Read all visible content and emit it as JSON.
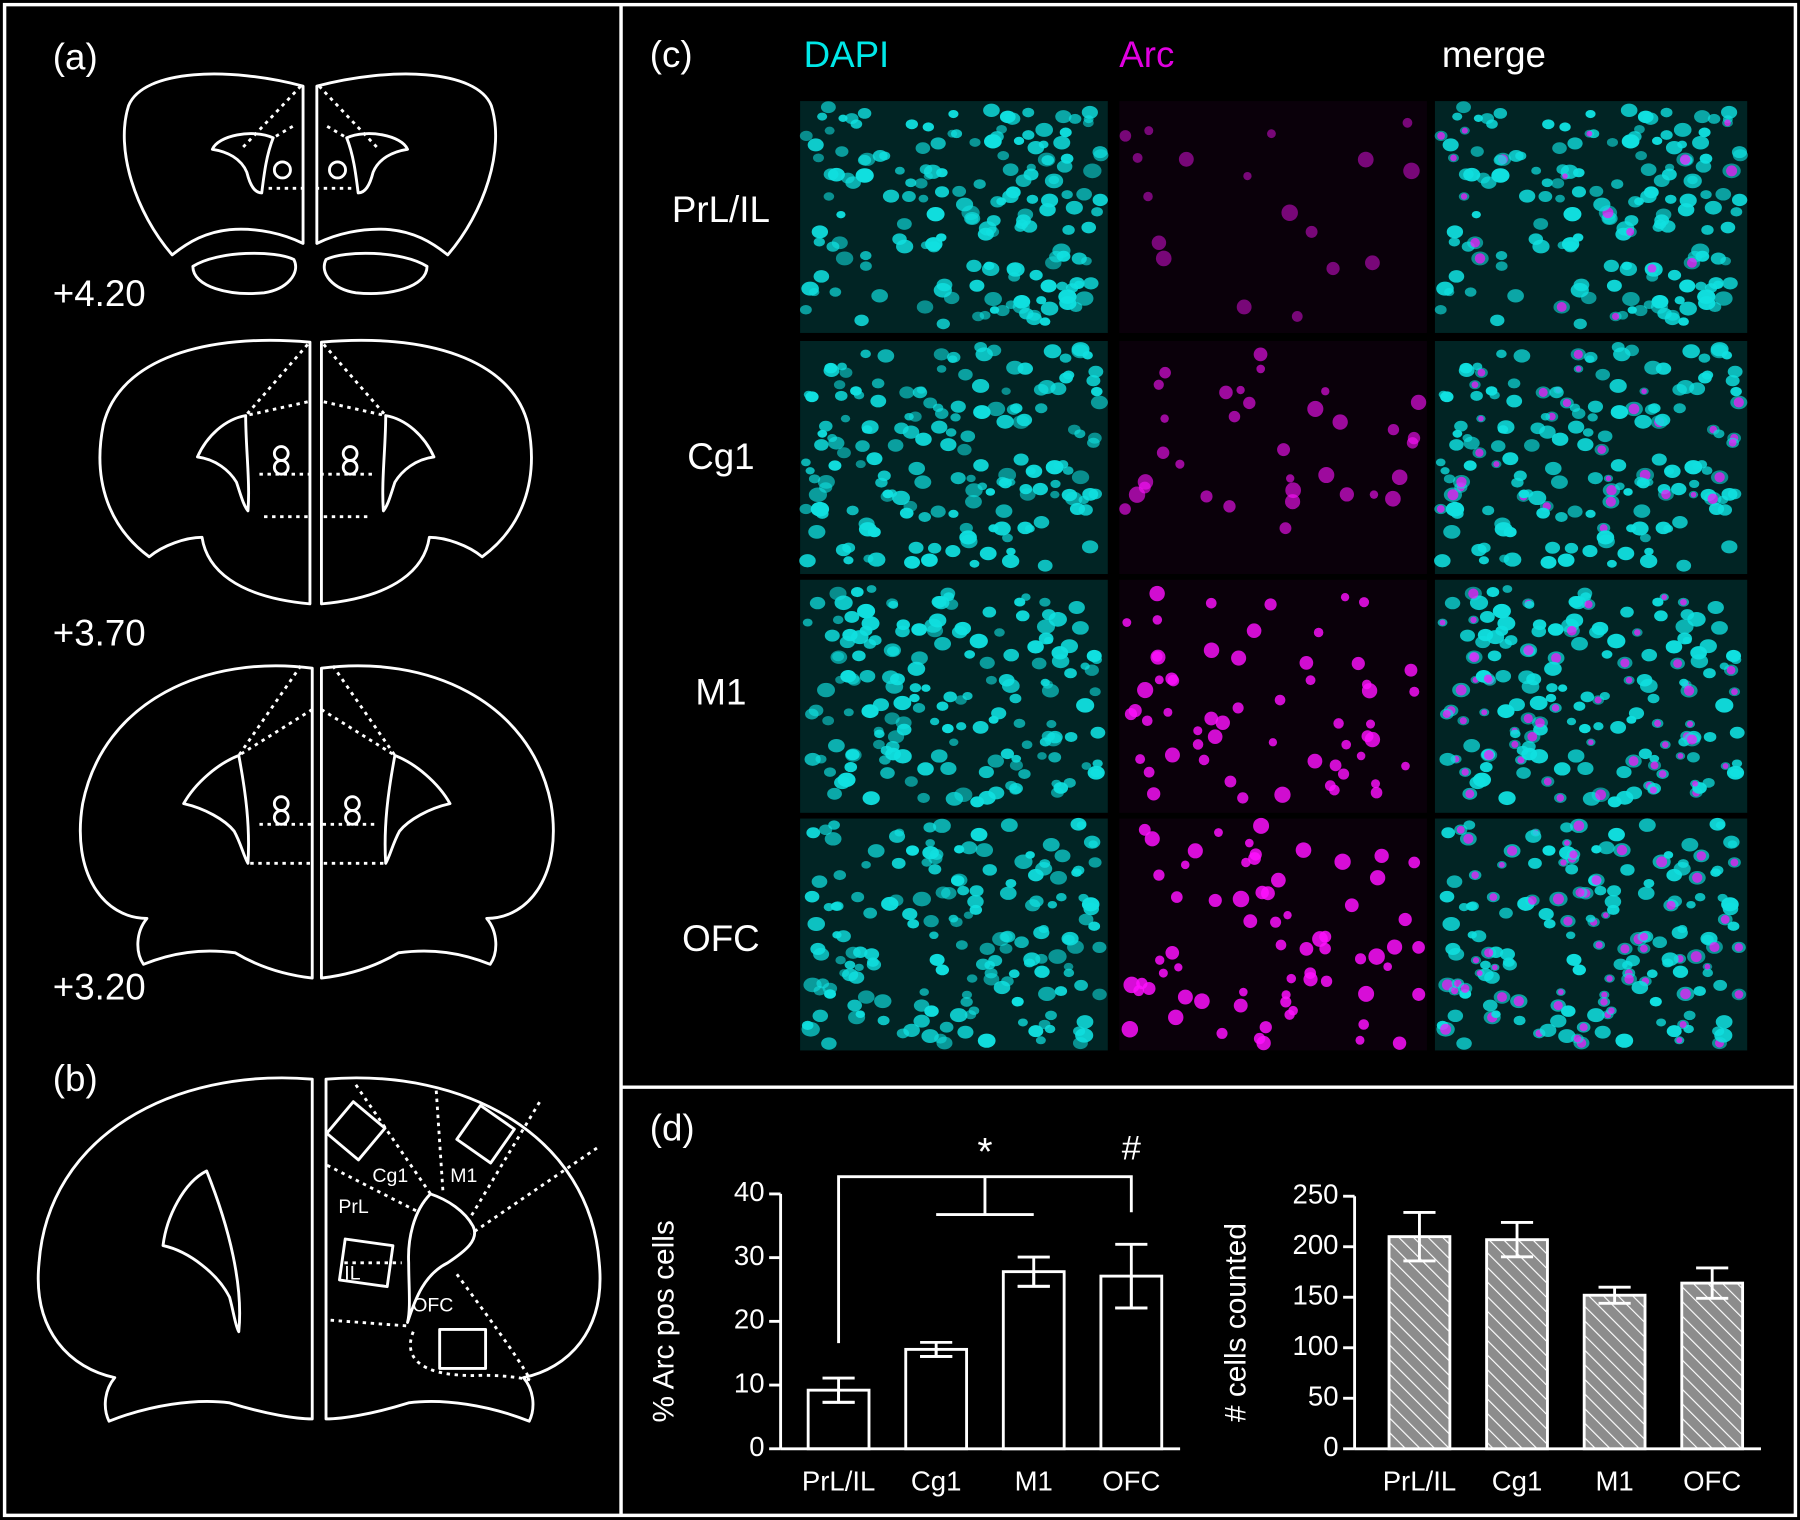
{
  "panels": {
    "a": {
      "label": "(a)",
      "sections": [
        "+4.20",
        "+3.70",
        "+3.20"
      ]
    },
    "b": {
      "label": "(b)",
      "regions": [
        "Cg1",
        "M1",
        "PrL",
        "IL",
        "OFC"
      ]
    },
    "c": {
      "label": "(c)",
      "channels": [
        "DAPI",
        "Arc",
        "merge"
      ],
      "rows": [
        "PrL/IL",
        "Cg1",
        "M1",
        "OFC"
      ]
    },
    "d": {
      "label": "(d)"
    }
  },
  "chart_data": [
    {
      "type": "bar",
      "ylabel": "% Arc pos cells",
      "categories": [
        "PrL/IL",
        "Cg1",
        "M1",
        "OFC"
      ],
      "values": [
        9.2,
        15.6,
        27.8,
        27.1
      ],
      "errors": [
        1.9,
        1.1,
        2.3,
        5.0
      ],
      "ylim": [
        0,
        40
      ],
      "yticks": [
        0,
        10,
        20,
        30,
        40
      ],
      "annotations": [
        "*",
        "#"
      ],
      "color": "#000000",
      "hatch": false
    },
    {
      "type": "bar",
      "ylabel": "# cells counted",
      "categories": [
        "PrL/IL",
        "Cg1",
        "M1",
        "OFC"
      ],
      "values": [
        210,
        207,
        152,
        164
      ],
      "errors": [
        24,
        17,
        8,
        15
      ],
      "ylim": [
        0,
        250
      ],
      "yticks": [
        0,
        50,
        100,
        150,
        200,
        250
      ],
      "color": "#8c8c8c",
      "hatch": true
    }
  ]
}
